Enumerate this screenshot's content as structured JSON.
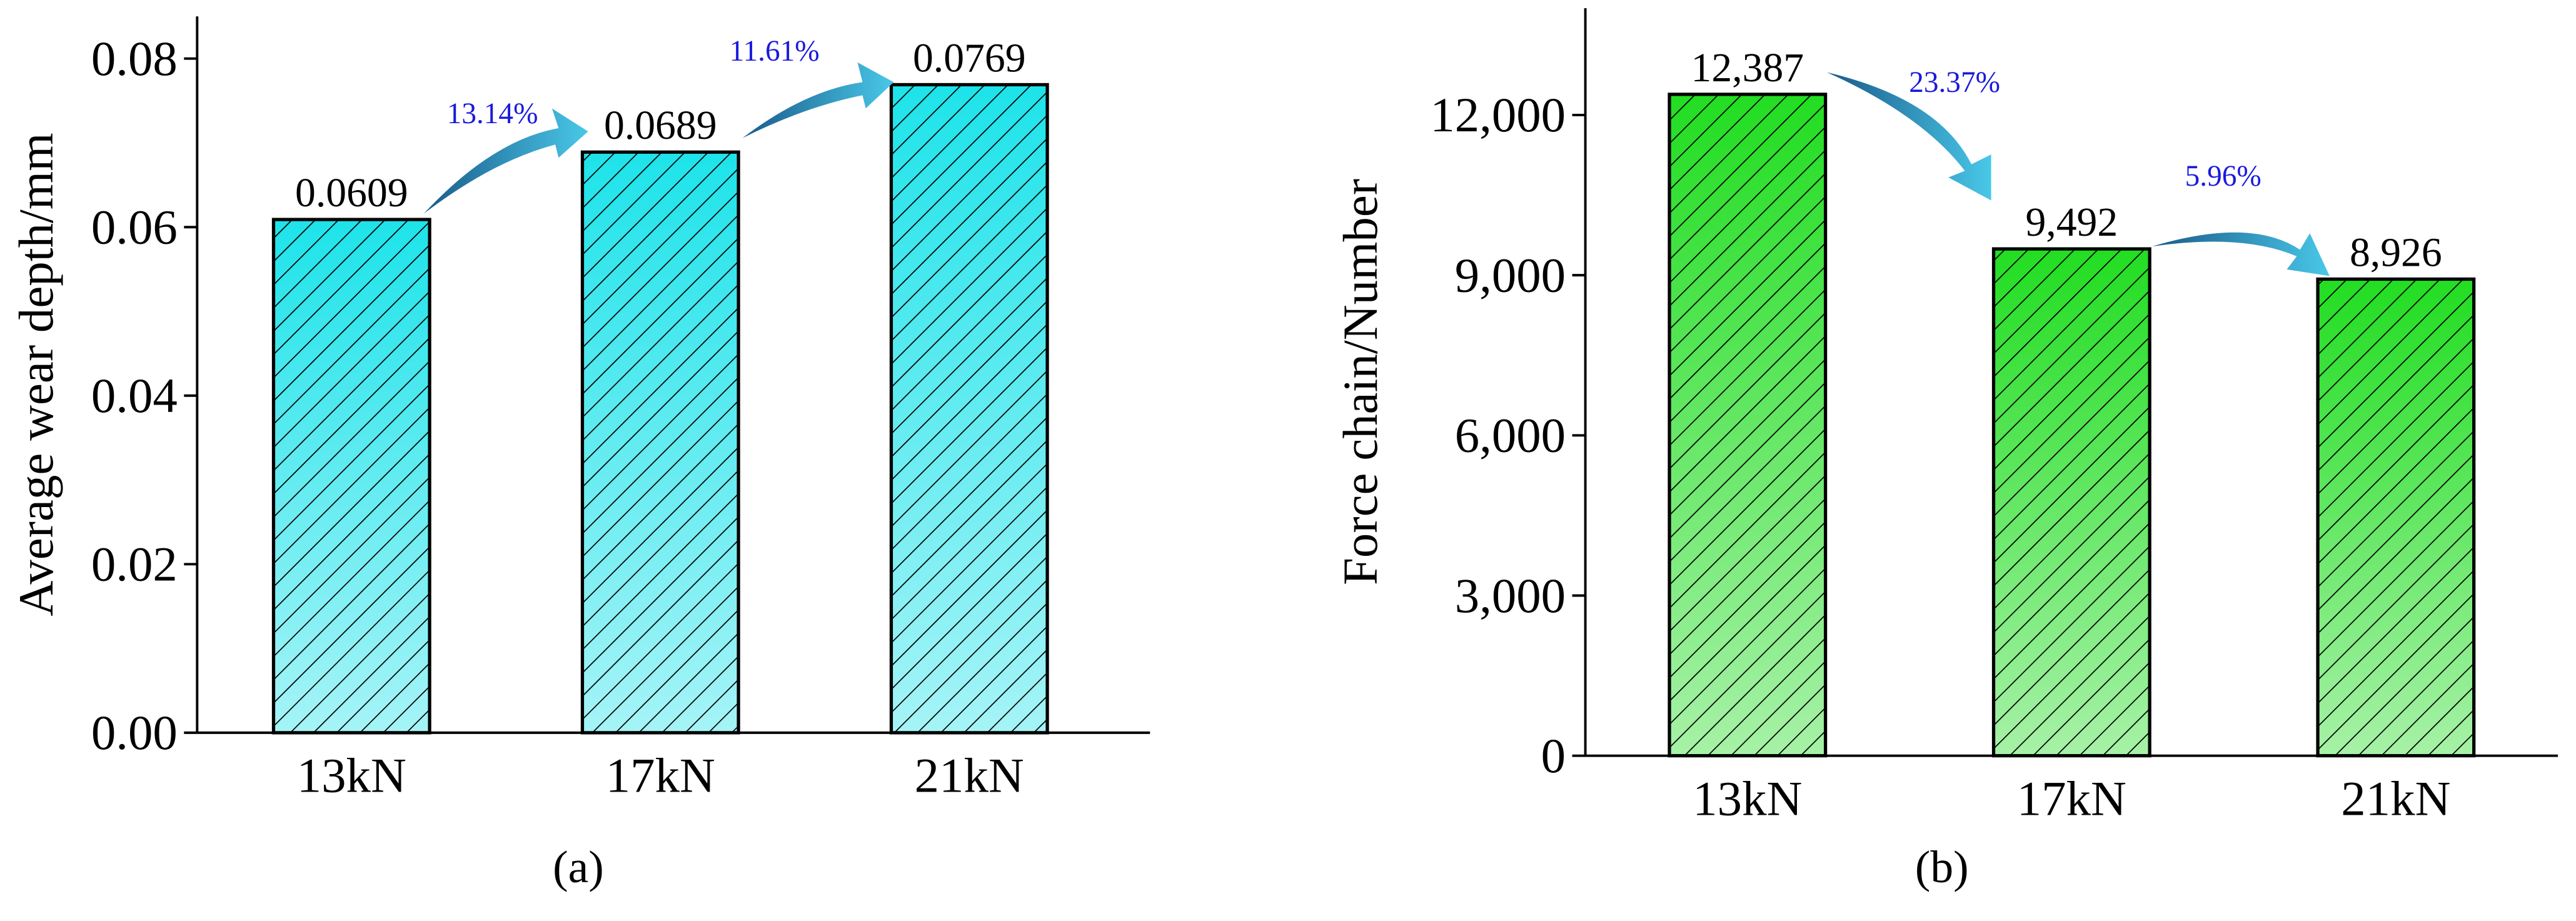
{
  "chart_data": [
    {
      "type": "bar",
      "ylabel": "Average wear depth/mm",
      "caption": "(a)",
      "categories": [
        "13kN",
        "17kN",
        "21kN"
      ],
      "values": [
        0.0609,
        0.0689,
        0.0769
      ],
      "color": "#1ee3ea",
      "ylim": [
        0,
        0.085
      ],
      "yticks": [
        {
          "value": 0,
          "label": "0.00"
        },
        0.02,
        0.04,
        0.06,
        0.08
      ],
      "annotations": [
        "13.14%",
        "11.61%"
      ]
    },
    {
      "type": "bar",
      "ylabel": "Force chain/Number",
      "caption": "(b)",
      "categories": [
        "13kN",
        "17kN",
        "21kN"
      ],
      "values": [
        12387,
        9492,
        8926
      ],
      "value_labels": [
        "12,387",
        "9,492",
        "8,926"
      ],
      "color": "#22dd22",
      "ylim": [
        0,
        14000
      ],
      "yticks": [
        0,
        {
          "value": 3000,
          "label": "3,000"
        },
        {
          "value": 6000,
          "label": "6,000"
        },
        {
          "value": 9000,
          "label": "9,000"
        },
        {
          "value": 12000,
          "label": "12,000"
        }
      ],
      "annotations": [
        "23.37%",
        "5.96%"
      ]
    }
  ]
}
